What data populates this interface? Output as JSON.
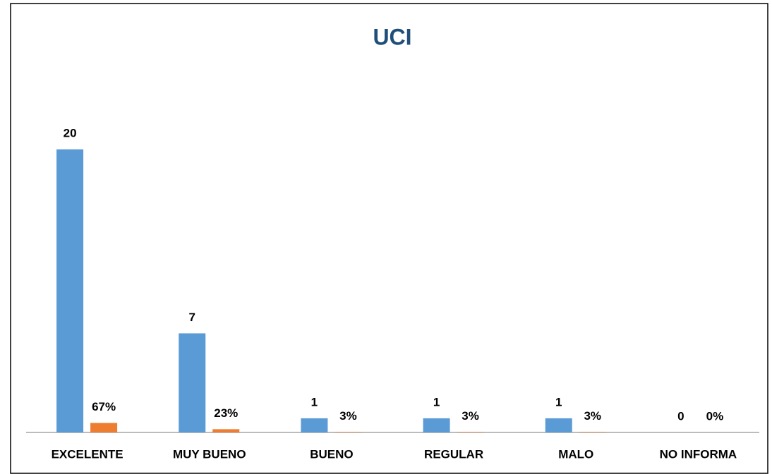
{
  "chart_data": {
    "type": "bar",
    "title": "UCI",
    "categories": [
      "EXCELENTE",
      "MUY BUENO",
      "BUENO",
      "REGULAR",
      "MALO",
      "NO INFORMA"
    ],
    "series": [
      {
        "color": "#5b9bd5",
        "values": [
          20,
          7,
          1,
          1,
          1,
          0
        ]
      },
      {
        "color": "#ed7d31",
        "axis": "y2",
        "values": [
          67,
          23,
          3,
          3,
          3,
          0
        ],
        "value_labels": [
          "67%",
          "23%",
          "3%",
          "3%",
          "3%",
          "0%"
        ]
      }
    ],
    "ylim": [
      0,
      22
    ],
    "y2lim": [
      0,
      2200
    ]
  }
}
